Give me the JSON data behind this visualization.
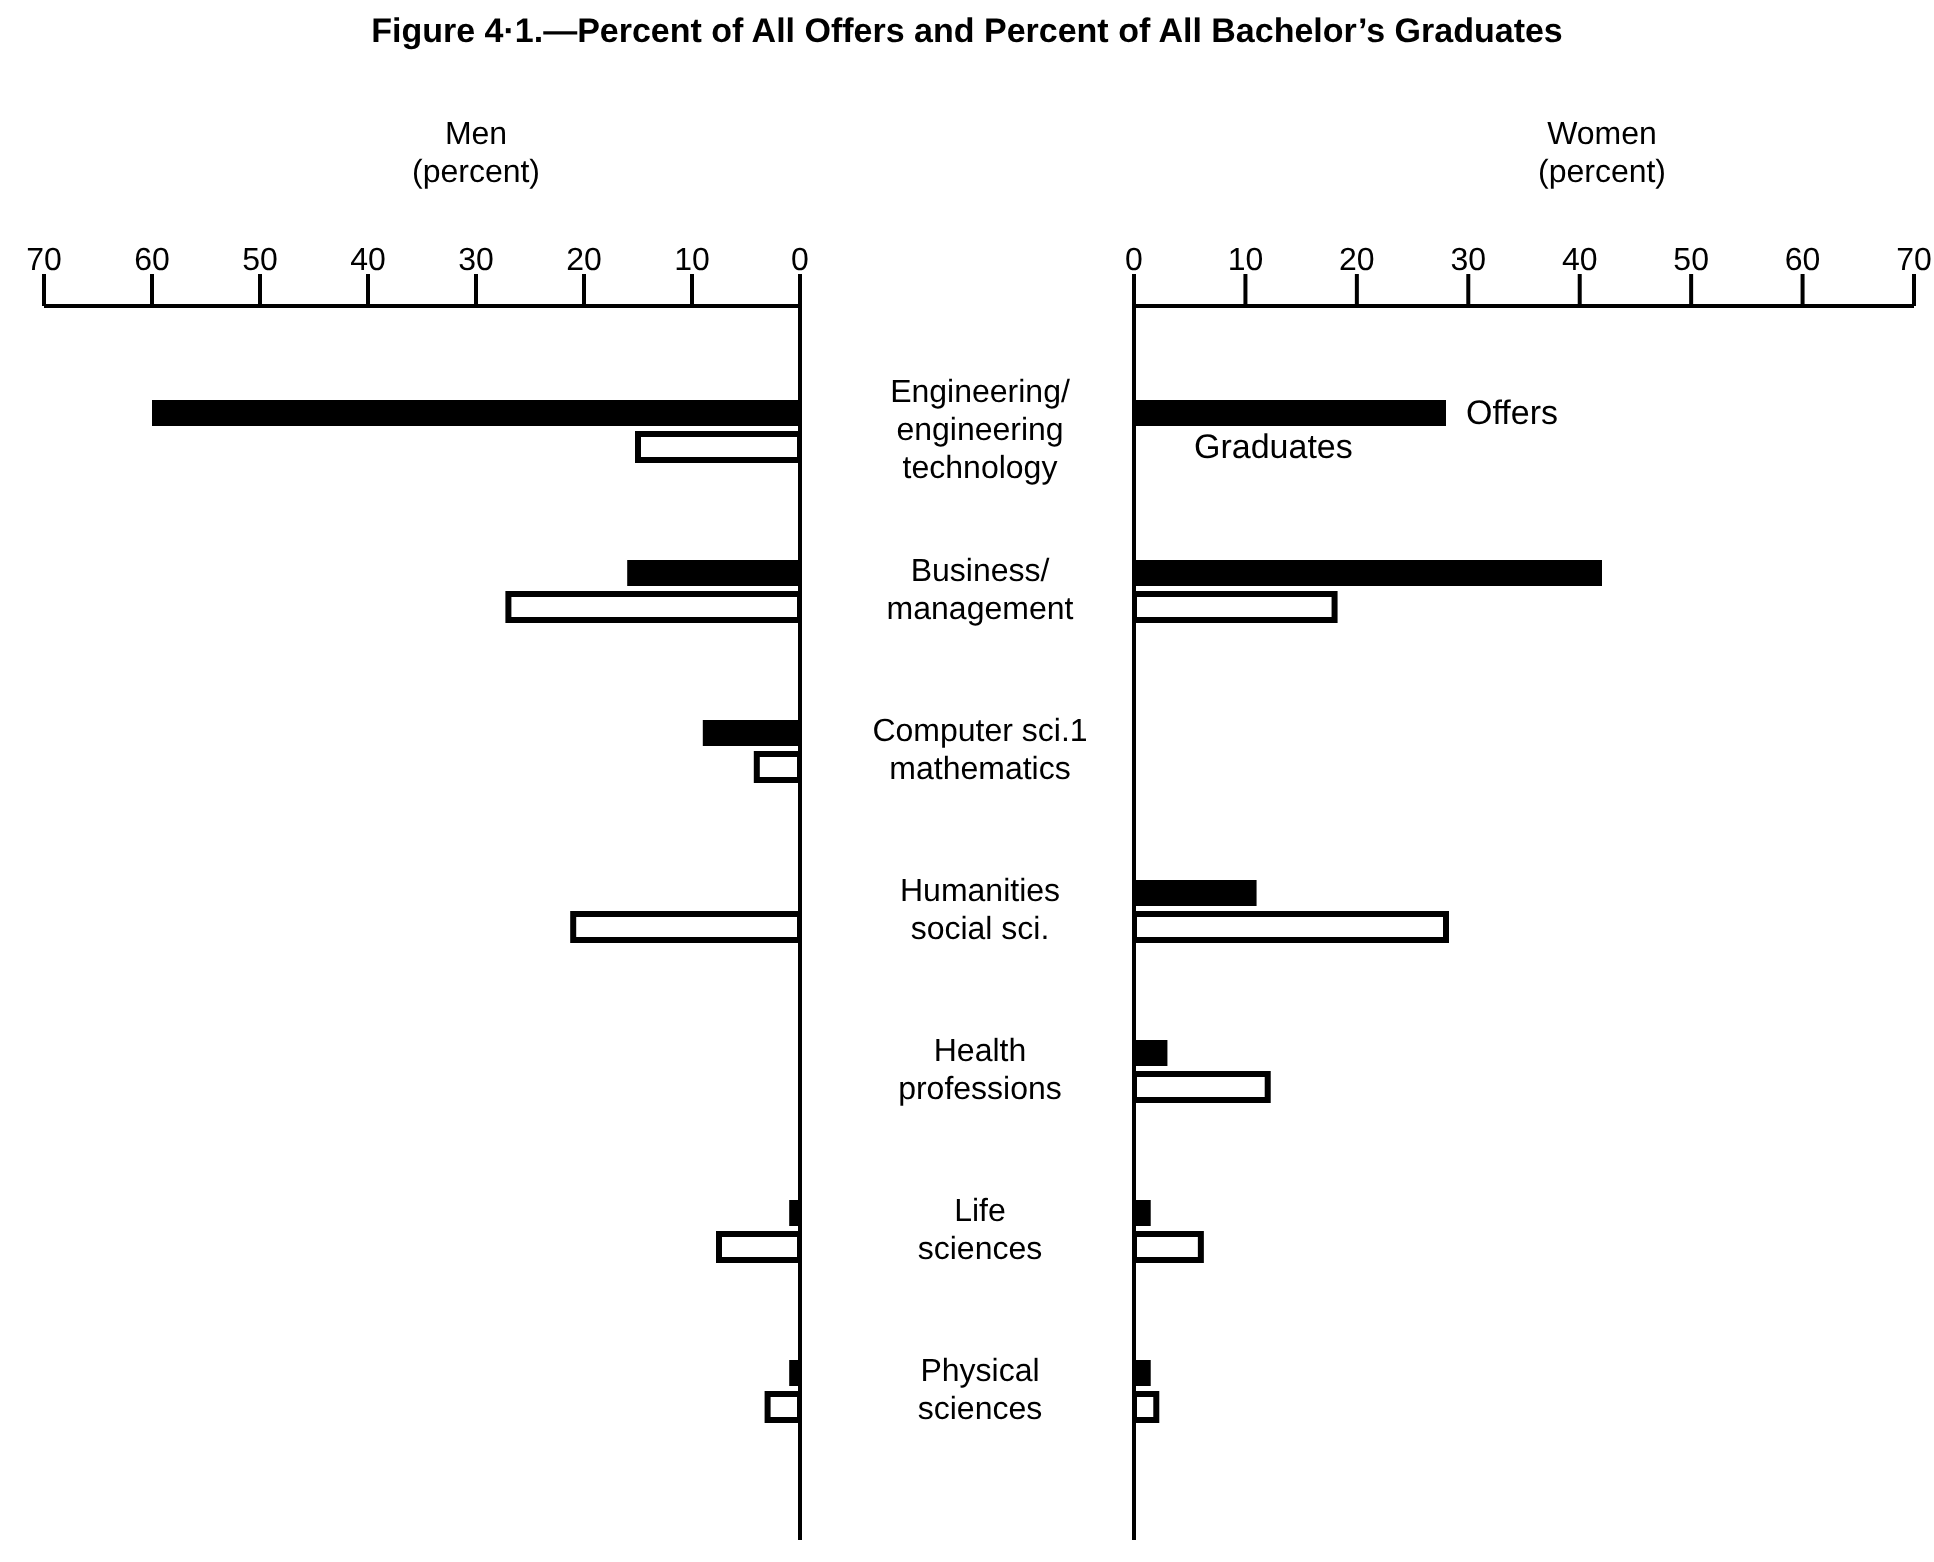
{
  "chart_data": [
    {
      "type": "bar",
      "orientation": "horizontal",
      "title": "Figure 4·1.—Percent of All Offers and Percent of All Bachelor’s Graduates",
      "xlabel": "Men (percent)",
      "categories": [
        "Engineering/ engineering technology",
        "Business/ management",
        "Computer sci.1 mathematics",
        "Humanities social sci.",
        "Health professions",
        "Life sciences",
        "Physical sciences"
      ],
      "series": [
        {
          "color": "#000000",
          "values": [
            60,
            16,
            9,
            null,
            null,
            1,
            1
          ]
        },
        {
          "color": "#000000",
          "values": [
            15,
            27,
            4,
            21,
            null,
            7.5,
            3
          ]
        }
      ],
      "xlim": [
        70,
        0
      ],
      "xticks": [
        70,
        60,
        50,
        40,
        30,
        20,
        10,
        0
      ]
    },
    {
      "type": "bar",
      "orientation": "horizontal",
      "xlabel": "Women (percent)",
      "categories": [
        null,
        null,
        null,
        null,
        null,
        null,
        null
      ],
      "series": [
        {
          "name": "Offers",
          "color": "#000000",
          "values": [
            28,
            42,
            null,
            11,
            3,
            1.5,
            1.5
          ]
        },
        {
          "name": "Graduates",
          "color": "#000000",
          "values": [
            null,
            18,
            null,
            28,
            12,
            6,
            2
          ]
        }
      ],
      "xlim": [
        0,
        70
      ],
      "xticks": [
        0,
        10,
        20,
        30,
        40,
        50,
        60,
        70
      ]
    }
  ]
}
